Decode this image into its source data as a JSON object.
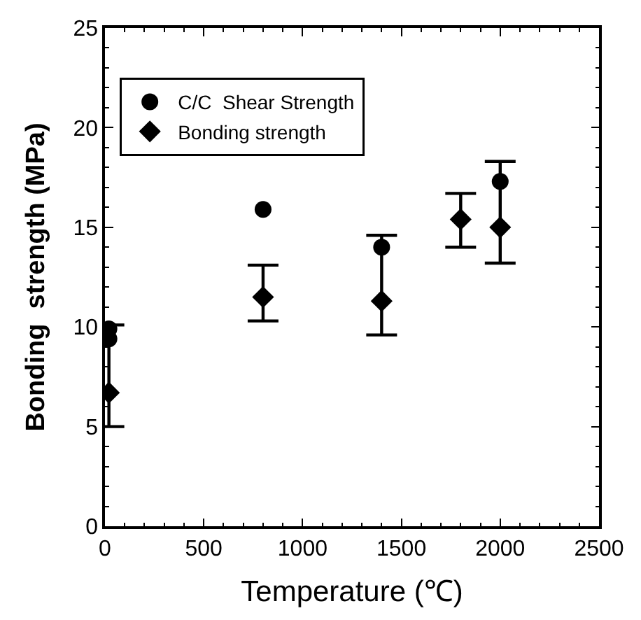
{
  "chart_data": {
    "type": "scatter",
    "xlabel": "Temperature (℃)",
    "ylabel": "Bonding  strength (MPa)",
    "xlim": [
      0,
      2500
    ],
    "xticks": [
      0,
      500,
      1000,
      1500,
      2000,
      2500
    ],
    "ylim": [
      0,
      25
    ],
    "yticks": [
      0,
      5,
      10,
      15,
      20,
      25
    ],
    "legend": "top left",
    "series": [
      {
        "name": "C/C  Shear Strength",
        "color": "#000000",
        "marker": "circle",
        "x": [
          20,
          20,
          800,
          1400,
          2000
        ],
        "values": [
          9.9,
          9.4,
          15.9,
          14.0,
          17.3
        ]
      },
      {
        "name": "Bonding strength",
        "color": "#000000",
        "marker": "diamond",
        "x": [
          20,
          800,
          1400,
          1800,
          2000
        ],
        "values": [
          6.7,
          11.5,
          11.3,
          15.4,
          15.0
        ],
        "errors": [
          [
            5.0,
            10.1
          ],
          [
            10.3,
            13.1
          ],
          [
            9.6,
            14.6
          ],
          [
            14.0,
            16.7
          ],
          [
            13.2,
            18.3
          ]
        ]
      }
    ]
  }
}
